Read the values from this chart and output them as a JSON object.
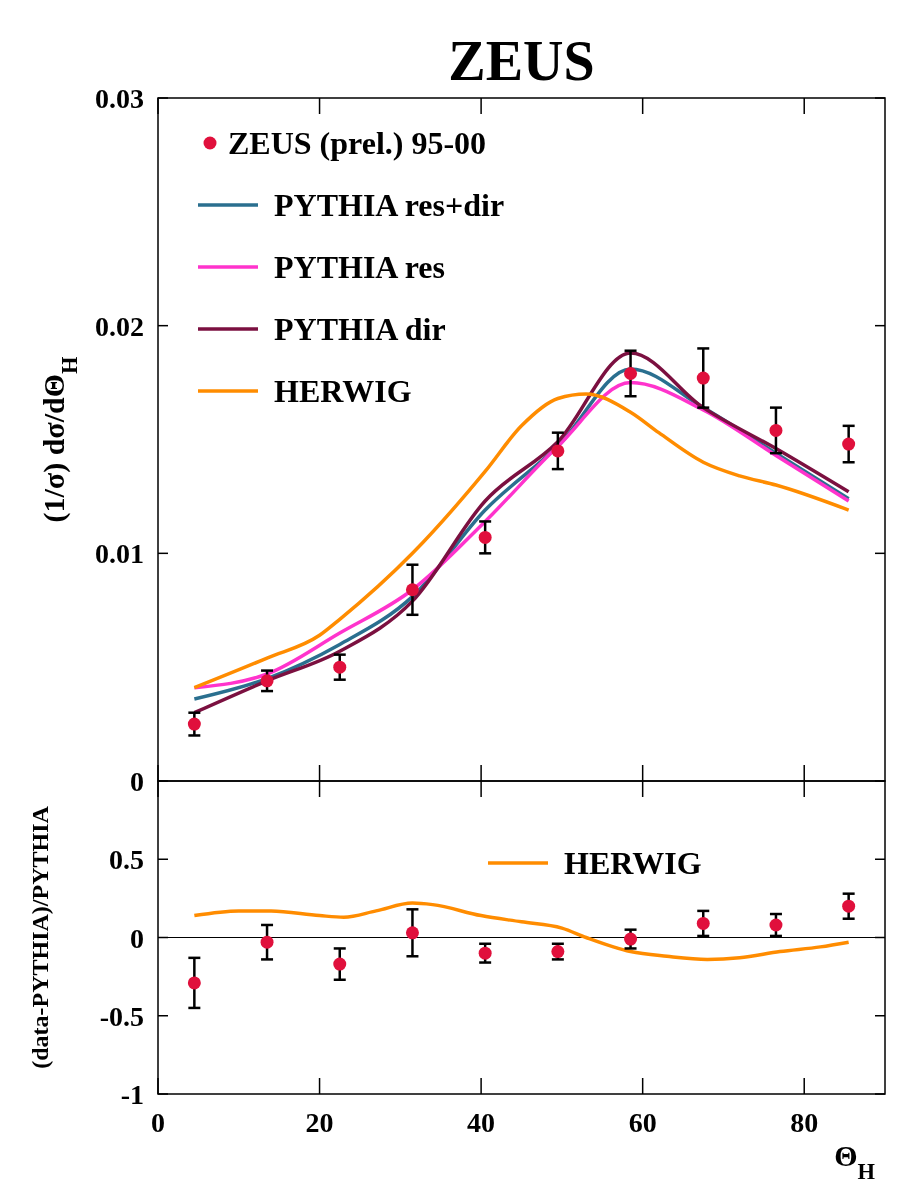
{
  "chart_data": [
    {
      "type": "line",
      "title": "ZEUS",
      "ylabel": "(1/σ) dσ/dΘ$_{H}$",
      "xlim": [
        0,
        90
      ],
      "xticks": [
        0,
        20,
        40,
        60,
        80
      ],
      "ylim": [
        0,
        0.03
      ],
      "yticks": [
        0,
        0.01,
        0.02,
        0.03
      ],
      "tick_labels": "y",
      "legend": "top left",
      "series": [
        {
          "name": "ZEUS (prel.) 95-00",
          "type": "scatter",
          "marker": "circle",
          "color": "#e0103c",
          "x": [
            4.5,
            13.5,
            22.5,
            31.5,
            40.5,
            49.5,
            58.5,
            67.5,
            76.5,
            85.5
          ],
          "values": [
            0.0025,
            0.0044,
            0.005,
            0.0084,
            0.0107,
            0.0145,
            0.0179,
            0.0177,
            0.0154,
            0.0148
          ],
          "errors": [
            0.0005,
            0.00045,
            0.00055,
            0.0011,
            0.0007,
            0.0008,
            0.001,
            0.0013,
            0.001,
            0.0008
          ]
        },
        {
          "name": "PYTHIA res+dir",
          "color": "#2a6f8f",
          "x": [
            4.5,
            13.5,
            22.5,
            31.5,
            40.5,
            49.5,
            58.5,
            67.5,
            76.5,
            85.5
          ],
          "values": [
            0.0036,
            0.0045,
            0.006,
            0.0081,
            0.0119,
            0.0147,
            0.0181,
            0.0164,
            0.0144,
            0.0124
          ]
        },
        {
          "name": "PYTHIA res",
          "color": "#ff33cc",
          "x": [
            4.5,
            13.5,
            22.5,
            31.5,
            40.5,
            49.5,
            58.5,
            67.5,
            76.5,
            85.5
          ],
          "values": [
            0.0041,
            0.0047,
            0.0065,
            0.0084,
            0.0114,
            0.0147,
            0.0175,
            0.0163,
            0.0143,
            0.0123
          ]
        },
        {
          "name": "PYTHIA dir",
          "color": "#7b1040",
          "x": [
            4.5,
            13.5,
            22.5,
            31.5,
            40.5,
            49.5,
            58.5,
            67.5,
            76.5,
            85.5
          ],
          "values": [
            0.003,
            0.0044,
            0.0057,
            0.0079,
            0.0123,
            0.0149,
            0.0188,
            0.0164,
            0.0146,
            0.0127
          ]
        },
        {
          "name": "HERWIG",
          "type": "line",
          "color": "#ff8c00",
          "x": [
            4.5,
            13.5,
            20,
            22.5,
            31.5,
            40.5,
            45,
            49.5,
            53,
            58.5,
            62,
            67.5,
            72,
            76.5,
            85.5
          ],
          "values": [
            0.0041,
            0.0054,
            0.0064,
            0.0071,
            0.01,
            0.0136,
            0.0156,
            0.0168,
            0.017,
            0.0162,
            0.0153,
            0.014,
            0.0134,
            0.013,
            0.0119
          ]
        }
      ]
    },
    {
      "type": "scatter",
      "xlabel": "Θ$_{H}$",
      "ylabel": "(data-PYTHIA)/PYTHIA",
      "xlim": [
        0,
        90
      ],
      "xticks": [
        0,
        20,
        40,
        60,
        80
      ],
      "ylim": [
        -1,
        1
      ],
      "yticks": [
        -1,
        -0.5,
        0,
        0.5
      ],
      "legend": "top",
      "ref_lines": [
        {
          "axis": "y",
          "value": 0,
          "color": "#000000"
        }
      ],
      "series": [
        {
          "marker": "circle",
          "color": "#e0103c",
          "x": [
            4.5,
            13.5,
            22.5,
            31.5,
            40.5,
            49.5,
            58.5,
            67.5,
            76.5,
            85.5
          ],
          "values": [
            -0.29,
            -0.03,
            -0.17,
            0.03,
            -0.1,
            -0.09,
            -0.01,
            0.09,
            0.08,
            0.2
          ],
          "errors": [
            0.16,
            0.11,
            0.1,
            0.15,
            0.06,
            0.05,
            0.06,
            0.08,
            0.07,
            0.08
          ]
        },
        {
          "name": "HERWIG",
          "type": "line",
          "color": "#ff8c00",
          "x": [
            4.5,
            10,
            14,
            20,
            23,
            27,
            31.5,
            34,
            40,
            45,
            50,
            53,
            58.5,
            63,
            68,
            72,
            77,
            82,
            85.5
          ],
          "values": [
            0.14,
            0.17,
            0.17,
            0.14,
            0.13,
            0.17,
            0.22,
            0.21,
            0.14,
            0.1,
            0.06,
            0,
            -0.09,
            -0.12,
            -0.14,
            -0.13,
            -0.09,
            -0.06,
            -0.03
          ]
        }
      ]
    }
  ]
}
